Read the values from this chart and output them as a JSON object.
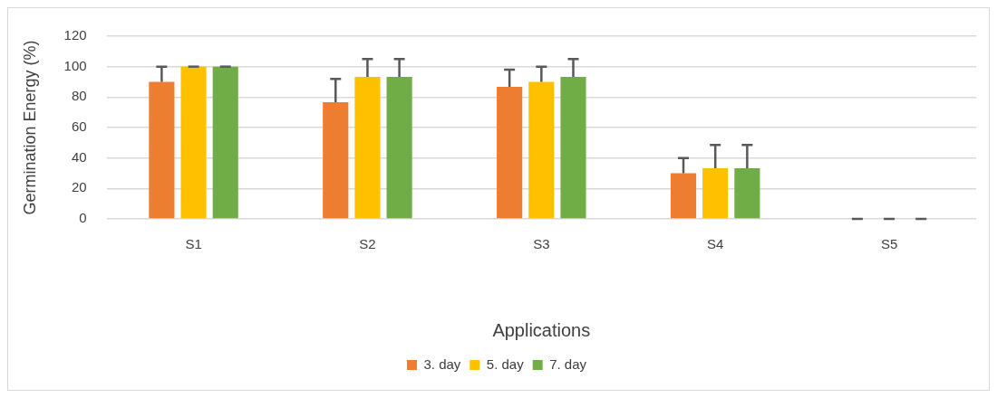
{
  "chart_data": {
    "type": "bar",
    "xlabel": "Applications",
    "ylabel": "Germination Energy (%)",
    "categories": [
      "S1",
      "S2",
      "S3",
      "S4",
      "S5"
    ],
    "series": [
      {
        "name": "3. day",
        "color": "#ed7d31",
        "values": [
          90,
          76.7,
          86.7,
          30,
          0
        ],
        "errors": [
          [
            90,
            100
          ],
          [
            76.7,
            92
          ],
          [
            86.7,
            98
          ],
          [
            30,
            40
          ],
          [
            0,
            0
          ]
        ]
      },
      {
        "name": "5. day",
        "color": "#ffc000",
        "values": [
          100,
          93.3,
          90,
          33.3,
          0
        ],
        "errors": [
          [
            100,
            100
          ],
          [
            93.3,
            105
          ],
          [
            90,
            100
          ],
          [
            33.3,
            48.6
          ],
          [
            0,
            0
          ]
        ]
      },
      {
        "name": "7. day",
        "color": "#70ad47",
        "values": [
          100,
          93.3,
          93.3,
          33.3,
          0
        ],
        "errors": [
          [
            100,
            100
          ],
          [
            93.3,
            105
          ],
          [
            93.3,
            105
          ],
          [
            33.3,
            48.6
          ],
          [
            0,
            0
          ]
        ]
      }
    ],
    "ylim": [
      0,
      120
    ],
    "yticks": [
      0,
      20,
      40,
      60,
      80,
      100,
      120
    ],
    "grid": "y",
    "legend": "bottom"
  }
}
